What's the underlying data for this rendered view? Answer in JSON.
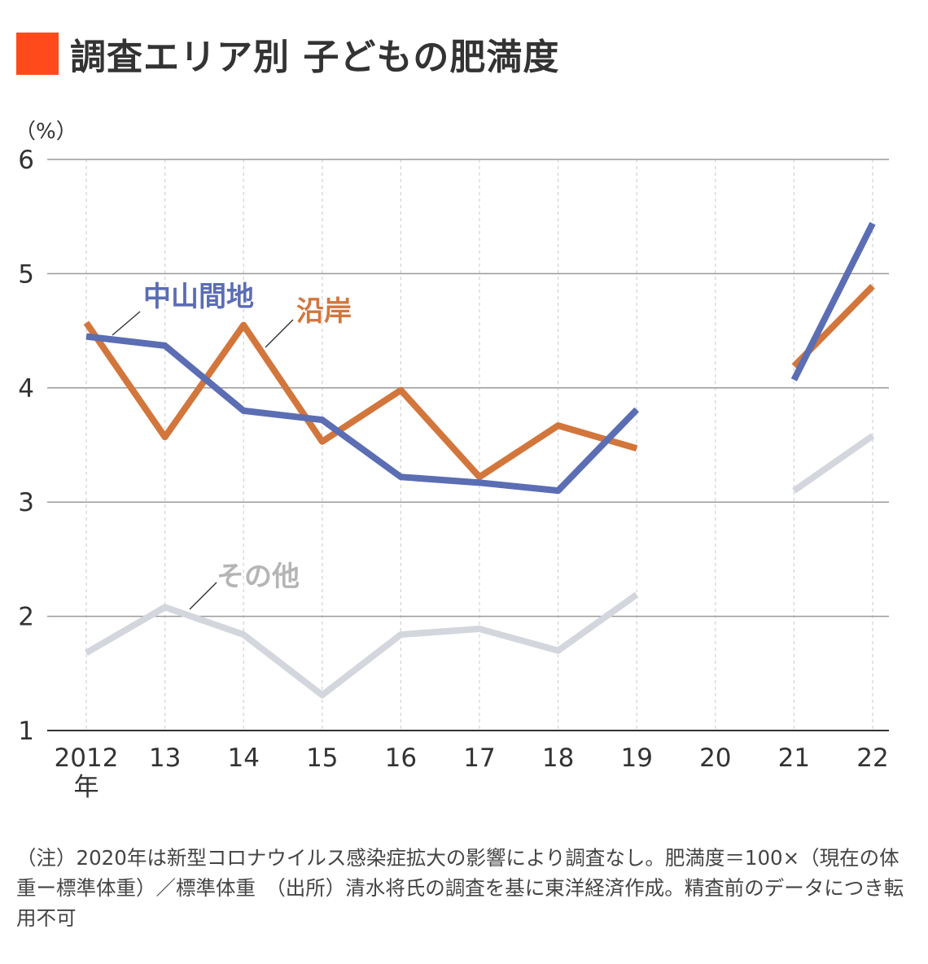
{
  "title": "調査エリア別 子どもの肥満度",
  "colors": {
    "accent": "#ff4a1c",
    "blue": "#5b6db3",
    "orange": "#d2763c",
    "gray": "#d3d7dd",
    "gray_text": "#b5b5b5"
  },
  "note": "（注）2020年は新型コロナウイルス感染症拡大の影響により調査なし。肥満度＝100×（現在の体重ー標準体重）／標準体重　（出所）清水将氏の調査を基に東洋経済作成。精査前のデータにつき転用不可",
  "chart_data": {
    "type": "line",
    "unit": "（%）",
    "year_suffix": "年",
    "x": [
      2012,
      2013,
      2014,
      2015,
      2016,
      2017,
      2018,
      2019,
      2020,
      2021,
      2022
    ],
    "x_tick_labels": [
      "2012",
      "13",
      "14",
      "15",
      "16",
      "17",
      "18",
      "19",
      "20",
      "21",
      "22"
    ],
    "ylim": [
      1,
      6
    ],
    "y_ticks": [
      1,
      2,
      3,
      4,
      5,
      6
    ],
    "grid": true,
    "series": [
      {
        "name": "中山間地",
        "color": "#5b6db3",
        "label_color": "#5b6db3",
        "values": [
          4.45,
          4.37,
          3.8,
          3.72,
          3.22,
          3.17,
          3.1,
          3.81,
          null,
          4.07,
          5.44
        ]
      },
      {
        "name": "沿岸",
        "color": "#d2763c",
        "label_color": "#d2763c",
        "values": [
          4.57,
          3.57,
          4.55,
          3.53,
          3.98,
          3.22,
          3.67,
          3.47,
          null,
          4.19,
          4.89
        ]
      },
      {
        "name": "その他",
        "color": "#d3d7dd",
        "label_color": "#b5b5b5",
        "values": [
          1.68,
          2.08,
          1.84,
          1.31,
          1.84,
          1.89,
          1.7,
          2.19,
          null,
          3.1,
          3.58
        ]
      }
    ]
  }
}
